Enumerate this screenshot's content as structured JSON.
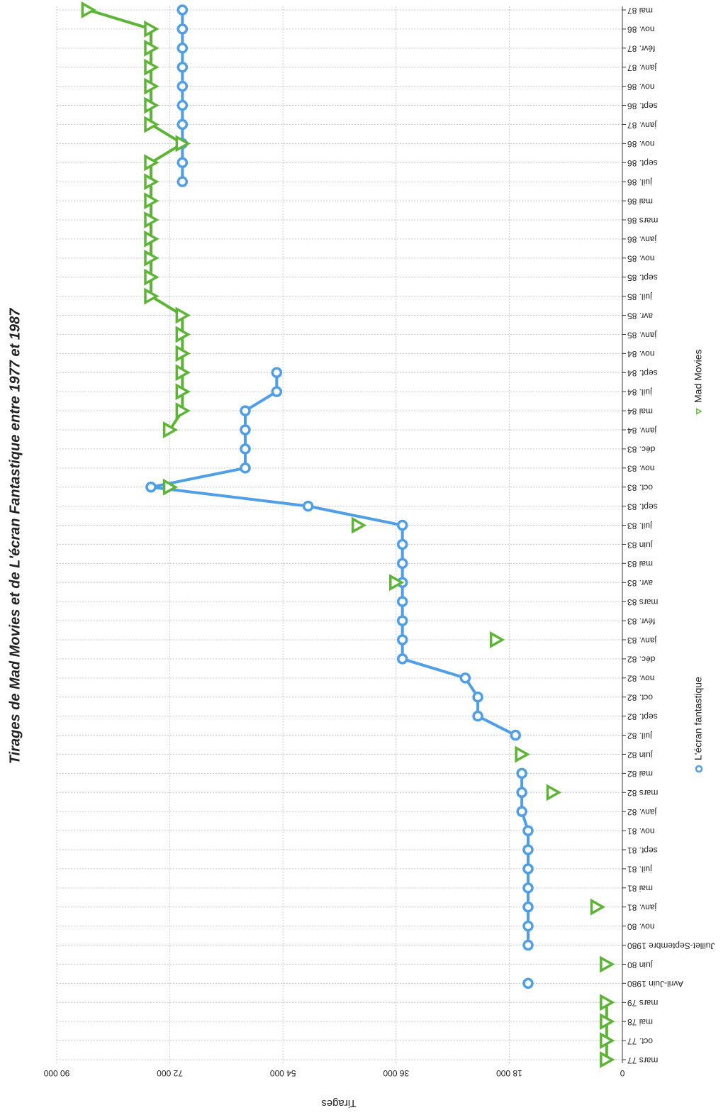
{
  "chart_data": {
    "type": "line",
    "title": "Tirages de Mad Movies et de L'écran Fantastique entre 1977 et 1987",
    "y_label": "Tirages",
    "categories": [
      "mars 77",
      "oct. 77",
      "mai 78",
      "mars 79",
      "Avril-Juin 1980",
      "juin 80",
      "Juillet-Septembre 1980",
      "nov. 80",
      "janv. 81",
      "mai 81",
      "juil. 81",
      "sept. 81",
      "nov. 81",
      "janv. 82",
      "mars 82",
      "mai 82",
      "juin 82",
      "juil. 82",
      "sept. 82",
      "oct. 82",
      "nov. 82",
      "déc. 82",
      "janv. 83",
      "févr. 83",
      "mars 83",
      "avr. 83",
      "mai 83",
      "juin 83",
      "juil. 83",
      "sept. 83",
      "oct. 83",
      "nov. 83",
      "déc. 83",
      "janv. 84",
      "mai 84",
      "juil. 84",
      "sept. 84",
      "nov. 84",
      "janv. 85",
      "avr. 85",
      "juil. 85",
      "sept. 85",
      "nov. 85",
      "janv. 86",
      "mars 86",
      "mai 86",
      "juil. 86",
      "sept. 86",
      "nov. 86",
      "janv. 87",
      "sept. 86",
      "nov. 86",
      "janv. 87",
      "févr. 87",
      "nov. 86",
      "mai 87"
    ],
    "series": [
      {
        "name": "L'écran fantastique",
        "color": "#4f9ee8",
        "marker": "circle",
        "values": [
          null,
          null,
          null,
          null,
          15000,
          null,
          15000,
          15000,
          15000,
          15000,
          15000,
          15000,
          15000,
          16000,
          16000,
          16000,
          null,
          17000,
          23000,
          23000,
          25000,
          35000,
          35000,
          35000,
          35000,
          35000,
          35000,
          35000,
          35000,
          50000,
          75000,
          60000,
          60000,
          60000,
          60000,
          55000,
          55000,
          null,
          null,
          null,
          null,
          null,
          null,
          null,
          null,
          null,
          70000,
          70000,
          70000,
          70000,
          70000,
          70000,
          70000,
          70000,
          70000,
          70000
        ]
      },
      {
        "name": "Mad Movies",
        "color": "#5db535",
        "marker": "triangle",
        "values": [
          2500,
          2500,
          2500,
          2500,
          null,
          2500,
          null,
          null,
          4000,
          null,
          null,
          null,
          null,
          null,
          11000,
          null,
          16000,
          null,
          null,
          null,
          null,
          null,
          20000,
          null,
          null,
          36000,
          null,
          null,
          42000,
          null,
          72000,
          null,
          null,
          72000,
          70000,
          70000,
          70000,
          70000,
          70000,
          70000,
          75000,
          75000,
          75000,
          75000,
          75000,
          75000,
          75000,
          75000,
          70000,
          75000,
          75000,
          75000,
          75000,
          75000,
          75000,
          85000
        ]
      }
    ],
    "ylim": [
      0,
      90000
    ],
    "yticks": [
      0,
      {
        "value": 18000,
        "label": "18 000"
      },
      {
        "value": 36000,
        "label": "36 000"
      },
      {
        "value": 54000,
        "label": "54 000"
      },
      {
        "value": 72000,
        "label": "72 000"
      },
      {
        "value": 90000,
        "label": "90 000"
      }
    ],
    "grid": true
  }
}
